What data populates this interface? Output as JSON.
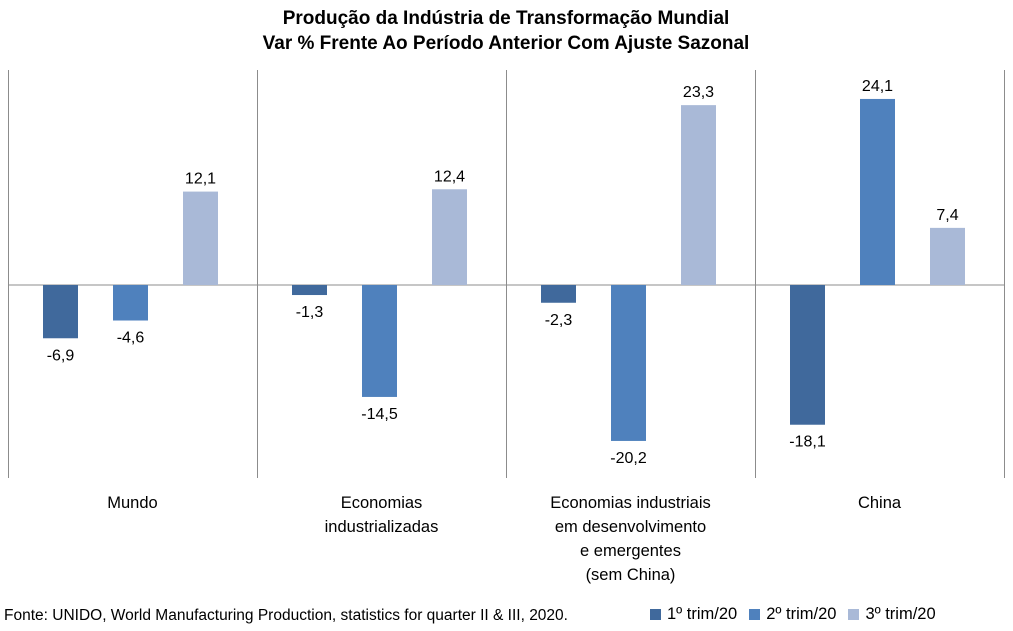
{
  "colors": {
    "s1": "#40699c",
    "s2": "#4f81bd",
    "s3": "#a9b9d7",
    "grid": "#8c8c8c"
  },
  "chart_data": {
    "type": "bar",
    "title": [
      "Produção da Indústria de Transformação Mundial",
      "Var % Frente Ao Período Anterior Com Ajuste Sazonal"
    ],
    "categories": [
      [
        "Mundo"
      ],
      [
        "Economias",
        "industrializadas"
      ],
      [
        "Economias industriais",
        "em desenvolvimento",
        "e emergentes",
        "(sem China)"
      ],
      [
        "China"
      ]
    ],
    "series": [
      {
        "name": "1º trim/20",
        "values": [
          -6.9,
          -1.3,
          -2.3,
          -18.1
        ],
        "labels": [
          "-6,9",
          "-1,3",
          "-2,3",
          "-18,1"
        ]
      },
      {
        "name": "2º trim/20",
        "values": [
          -4.6,
          -14.5,
          -20.2,
          24.1
        ],
        "labels": [
          "-4,6",
          "-14,5",
          "-20,2",
          "24,1"
        ]
      },
      {
        "name": "3º trim/20",
        "values": [
          12.1,
          12.4,
          23.3,
          7.4
        ],
        "labels": [
          "12,1",
          "12,4",
          "23,3",
          "7,4"
        ]
      }
    ],
    "ylim": [
      -24,
      28
    ],
    "grid": false,
    "legend_position": "bottom-right"
  },
  "footer": {
    "source": "Fonte: UNIDO, World Manufacturing Production, statistics for quarter II & III, 2020."
  }
}
